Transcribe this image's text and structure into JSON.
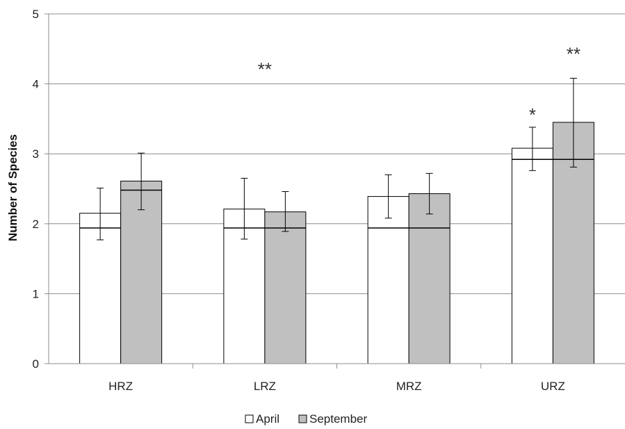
{
  "chart_data": {
    "type": "bar",
    "categories": [
      "HRZ",
      "LRZ",
      "MRZ",
      "URZ"
    ],
    "series": [
      {
        "name": "April",
        "values": [
          2.15,
          2.21,
          2.39,
          3.08
        ],
        "err_low": [
          1.77,
          1.78,
          2.08,
          2.76
        ],
        "err_high": [
          2.51,
          2.65,
          2.7,
          3.38
        ],
        "reference": [
          1.94,
          1.94,
          1.94,
          2.92
        ]
      },
      {
        "name": "September",
        "values": [
          2.61,
          2.17,
          2.43,
          3.45
        ],
        "err_low": [
          2.2,
          1.89,
          2.14,
          2.81
        ],
        "err_high": [
          3.01,
          2.46,
          2.72,
          4.08
        ],
        "reference": [
          2.48,
          1.94,
          1.94,
          2.92
        ]
      }
    ],
    "annotations": [
      {
        "text": "**",
        "category": "LRZ",
        "y": 4.3
      },
      {
        "text": "*",
        "category": "URZ",
        "series": "April",
        "y": 3.65
      },
      {
        "text": "**",
        "category": "URZ",
        "series": "September",
        "y": 4.52
      }
    ],
    "xlabel": "",
    "ylabel": "Number of Species",
    "ylim": [
      0,
      5
    ],
    "yticks": [
      "0",
      "1",
      "2",
      "3",
      "4",
      "5"
    ],
    "grid": true,
    "legend_position": "bottom-center",
    "colors": {
      "April": "#ffffff",
      "September": "#c0c0c0",
      "outline": "#000000",
      "grid": "#8c8c8c"
    }
  }
}
